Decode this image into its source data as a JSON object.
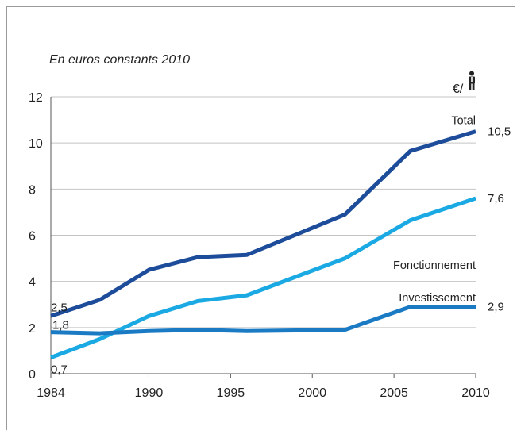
{
  "chart_data": {
    "type": "line",
    "title": "",
    "subtitle": "En euros constants 2010",
    "unit_label": "€/",
    "unit_icon": "person-icon",
    "xlabel": "",
    "ylabel": "",
    "xlim": [
      1984,
      2010
    ],
    "ylim": [
      0,
      12
    ],
    "x_ticks": [
      1984,
      1990,
      1995,
      2000,
      2005,
      2010
    ],
    "y_ticks": [
      0,
      2,
      4,
      6,
      8,
      10,
      12
    ],
    "grid": "horizontal",
    "series": [
      {
        "name": "Total",
        "color": "#1c4c9a",
        "x": [
          1984,
          1987,
          1990,
          1993,
          1996,
          2002,
          2006,
          2010
        ],
        "values": [
          2.5,
          3.2,
          4.5,
          5.05,
          5.15,
          6.9,
          9.65,
          10.5
        ],
        "start_label": "2,5",
        "end_label": "10,5"
      },
      {
        "name": "Fonctionnement",
        "color": "#1aa9e3",
        "x": [
          1984,
          1987,
          1990,
          1993,
          1996,
          2002,
          2006,
          2010
        ],
        "values": [
          0.7,
          1.5,
          2.5,
          3.15,
          3.4,
          5.0,
          6.65,
          7.6
        ],
        "start_label": "0,7",
        "end_label": "7,6"
      },
      {
        "name": "Investissement",
        "color": "#1a7bc4",
        "x": [
          1984,
          1987,
          1990,
          1993,
          1996,
          2002,
          2006,
          2010
        ],
        "values": [
          1.8,
          1.75,
          1.85,
          1.9,
          1.85,
          1.9,
          2.9,
          2.9
        ],
        "start_label": "1,8",
        "end_label": "2,9"
      }
    ]
  }
}
